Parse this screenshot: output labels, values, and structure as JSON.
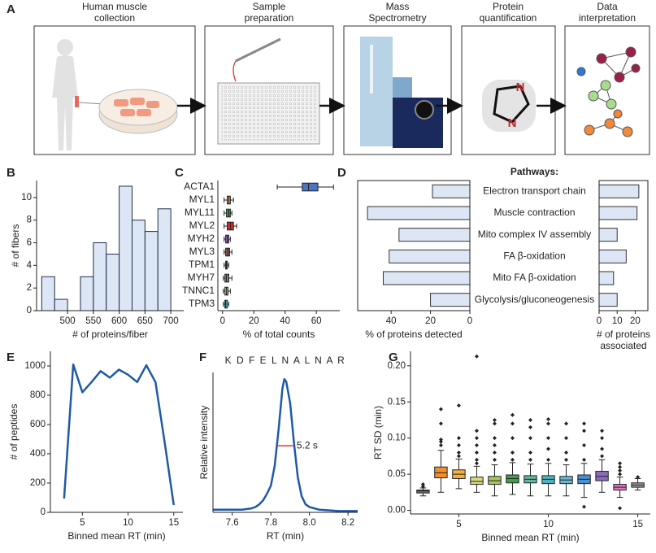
{
  "workflow": {
    "panel": "A",
    "steps": [
      {
        "title": [
          "Human muscle",
          "collection"
        ]
      },
      {
        "title": [
          "Sample",
          "preparation"
        ]
      },
      {
        "title": [
          "Mass",
          "Spectrometry"
        ]
      },
      {
        "title": [
          "Protein",
          "quantification"
        ]
      },
      {
        "title": [
          "Data",
          "interpretation"
        ]
      }
    ],
    "quant_icon_atoms": [
      "N",
      "N"
    ]
  },
  "chart_data": [
    {
      "panel": "B",
      "type": "histogram",
      "bins": [
        450,
        475,
        500,
        525,
        550,
        575,
        600,
        625,
        650,
        675,
        700
      ],
      "values": [
        3,
        1,
        0,
        3,
        6,
        5,
        11,
        8,
        7,
        9
      ],
      "color": "#dce6f5",
      "edgecolor": "#1f2d4a",
      "xlim": [
        440,
        725
      ],
      "xticks": [
        500,
        550,
        600,
        650,
        700
      ],
      "ylim": [
        0,
        11.5
      ],
      "yticks": [
        0,
        2,
        4,
        6,
        8,
        10
      ],
      "xlabel": "# of proteins/fiber",
      "ylabel": "# of fibers"
    },
    {
      "panel": "C",
      "type": "box",
      "orientation": "horizontal",
      "categories": [
        "ACTA1",
        "MYL1",
        "MYL11",
        "MYL2",
        "MYH2",
        "MYL3",
        "TPM1",
        "MYH7",
        "TNNC1",
        "TPM3"
      ],
      "colors": [
        "#4a74c4",
        "#f28e2b",
        "#2ca02c",
        "#d62728",
        "#9467bd",
        "#8c564b",
        "#e377c2",
        "#7f7f7f",
        "#bcbd22",
        "#17becf"
      ],
      "low": [
        35,
        1,
        1,
        1,
        1,
        1,
        1,
        0.5,
        0.5,
        0.5
      ],
      "q1": [
        51,
        3,
        2.5,
        3,
        2,
        2,
        2,
        1.5,
        1.5,
        1.5
      ],
      "median": [
        55,
        4,
        4,
        5,
        3,
        3.5,
        2.5,
        2.5,
        2.5,
        2
      ],
      "q3": [
        61,
        5,
        5,
        7,
        4,
        4.5,
        3,
        4,
        3.5,
        3
      ],
      "high": [
        71,
        7,
        6,
        9,
        5,
        6,
        4,
        6,
        5,
        4
      ],
      "xlim": [
        -3,
        75
      ],
      "xticks": [
        0,
        20,
        40,
        60
      ],
      "xlabel": "% of total counts"
    },
    {
      "panel": "D",
      "type": "mirror-bar",
      "header": "Pathways:",
      "categories": [
        "Electron transport chain",
        "Muscle contraction",
        "Mito complex IV assembly",
        "FA β-oxidation",
        "Mito FA β-oxidation",
        "Glycolysis/gluconeogenesis"
      ],
      "color": "#dce6f5",
      "left": {
        "values": [
          19,
          52,
          36,
          41,
          44,
          20
        ],
        "xlim": [
          57,
          0
        ],
        "xticks": [
          40,
          20,
          0
        ],
        "xlabel": "% of proteins detected"
      },
      "right": {
        "values": [
          22,
          21,
          10,
          15,
          8,
          10
        ],
        "xlim": [
          0,
          27
        ],
        "xticks": [
          0,
          10,
          20
        ],
        "xlabel": [
          "# of proteins",
          "associated"
        ]
      }
    },
    {
      "panel": "E",
      "type": "line",
      "x": [
        3,
        4,
        5,
        6,
        7,
        8,
        9,
        10,
        11,
        12,
        13,
        14,
        15
      ],
      "values": [
        95,
        1010,
        820,
        890,
        965,
        920,
        975,
        940,
        890,
        1005,
        890,
        480,
        50
      ],
      "color": "#1f5aa6",
      "xlim": [
        1.5,
        16
      ],
      "xticks": [
        5,
        10,
        15
      ],
      "ylim": [
        0,
        1100
      ],
      "yticks": [
        0,
        200,
        400,
        600,
        800,
        1000
      ],
      "xlabel": "Binned mean RT (min)",
      "ylabel": "# of peptides"
    },
    {
      "panel": "F",
      "type": "line",
      "title": "K D F E L N A L N A R",
      "x": [
        7.5,
        7.55,
        7.6,
        7.65,
        7.7,
        7.72,
        7.74,
        7.76,
        7.78,
        7.8,
        7.82,
        7.84,
        7.86,
        7.87,
        7.88,
        7.9,
        7.92,
        7.94,
        7.96,
        7.98,
        8.0,
        8.05,
        8.1,
        8.15,
        8.2,
        8.25
      ],
      "values": [
        0.02,
        0.02,
        0.02,
        0.02,
        0.03,
        0.04,
        0.06,
        0.09,
        0.14,
        0.2,
        0.35,
        0.62,
        0.93,
        1.0,
        0.98,
        0.82,
        0.52,
        0.26,
        0.12,
        0.06,
        0.04,
        0.02,
        0.015,
        0.01,
        0.01,
        0.01
      ],
      "color": "#1f5aa6",
      "xlim": [
        7.5,
        8.25
      ],
      "xticks": [
        7.6,
        7.8,
        {
          "value": 8,
          "label": "8.0"
        },
        8.2
      ],
      "ylim": [
        0,
        1.05
      ],
      "xlabel": "RT (min)",
      "ylabel": "Relative intensity",
      "annotation": {
        "label": "5.2 s",
        "x": [
          7.834,
          7.921
        ],
        "y": 0.5,
        "color": "#e8322c"
      }
    },
    {
      "panel": "G",
      "type": "box",
      "orientation": "vertical",
      "x": [
        3,
        4,
        5,
        6,
        7,
        8,
        9,
        10,
        11,
        12,
        13,
        14,
        15
      ],
      "colors": [
        "#6b6b6b",
        "#f28e2b",
        "#f5b041",
        "#d4dc7a",
        "#a5c85a",
        "#3fa34d",
        "#5fb89a",
        "#4fb3bf",
        "#6bb6d6",
        "#4a8fcf",
        "#8e6bbf",
        "#e377c2",
        "#9e9e9e"
      ],
      "low": [
        0.02,
        0.025,
        0.03,
        0.025,
        0.02,
        0.022,
        0.02,
        0.02,
        0.02,
        0.018,
        0.025,
        0.018,
        0.028
      ],
      "q1": [
        0.024,
        0.045,
        0.044,
        0.036,
        0.036,
        0.038,
        0.038,
        0.037,
        0.037,
        0.037,
        0.041,
        0.028,
        0.032
      ],
      "median": [
        0.027,
        0.052,
        0.05,
        0.04,
        0.041,
        0.044,
        0.043,
        0.043,
        0.042,
        0.043,
        0.047,
        0.032,
        0.035
      ],
      "q3": [
        0.028,
        0.06,
        0.056,
        0.046,
        0.047,
        0.049,
        0.048,
        0.048,
        0.047,
        0.049,
        0.054,
        0.036,
        0.038
      ],
      "high": [
        0.031,
        0.083,
        0.071,
        0.061,
        0.063,
        0.066,
        0.064,
        0.065,
        0.063,
        0.065,
        0.07,
        0.046,
        0.044
      ],
      "outliers": [
        [
          0.033,
          0.036
        ],
        [
          0.09,
          0.095,
          0.098,
          0.12,
          0.14
        ],
        [
          0.075,
          0.08,
          0.09,
          0.1,
          0.145
        ],
        [
          0.065,
          0.07,
          0.08,
          0.09,
          0.1,
          0.11,
          0.213
        ],
        [
          0.07,
          0.08,
          0.09,
          0.1,
          0.12,
          0.125
        ],
        [
          0.07,
          0.08,
          0.1,
          0.12,
          0.132
        ],
        [
          0.07,
          0.08,
          0.1,
          0.115,
          0.125
        ],
        [
          0.07,
          0.085,
          0.1,
          0.12,
          0.126
        ],
        [
          0.07,
          0.08,
          0.1,
          0.12
        ],
        [
          0.005,
          0.07,
          0.09,
          0.11,
          0.12
        ],
        [
          0.075,
          0.085,
          0.1,
          0.11
        ],
        [
          0.003,
          0.05,
          0.055,
          0.06,
          0.065
        ],
        [
          0.046
        ]
      ],
      "xlim": [
        2.3,
        15.7
      ],
      "xticks": [
        5,
        10,
        15
      ],
      "ylim": [
        -0.005,
        0.22
      ],
      "yticks": [
        {
          "value": 0,
          "label": "0.00"
        },
        0.05,
        {
          "value": 0.1,
          "label": "0.10"
        },
        0.15,
        {
          "value": 0.2,
          "label": "0.20"
        }
      ],
      "xlabel": "Binned mean RT (min)",
      "ylabel": "RT SD (min)"
    }
  ]
}
